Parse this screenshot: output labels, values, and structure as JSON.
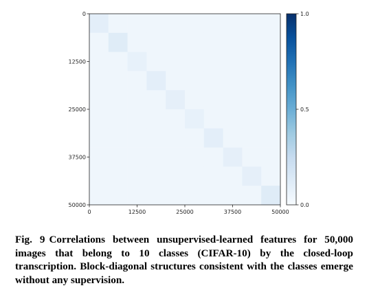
{
  "chart_data": {
    "type": "heatmap",
    "title": "",
    "xlabel": "",
    "ylabel": "",
    "x_ticks": [
      0,
      12500,
      25000,
      37500,
      50000
    ],
    "y_ticks": [
      0,
      12500,
      25000,
      37500,
      50000
    ],
    "x_tick_labels": [
      "0",
      "12500",
      "25000",
      "37500",
      "50000"
    ],
    "y_tick_labels": [
      "0",
      "12500",
      "25000",
      "37500",
      "50000"
    ],
    "xlim": [
      0,
      50000
    ],
    "ylim": [
      50000,
      0
    ],
    "num_blocks": 10,
    "block_size": 5000,
    "colormap": "Blues",
    "colorbar": {
      "range": [
        0.0,
        1.0
      ],
      "ticks": [
        0.0,
        0.5,
        1.0
      ],
      "tick_labels": [
        "0.0",
        "0.5",
        "1.0"
      ]
    },
    "diagonal_block_values": [
      0.1,
      0.12,
      0.08,
      0.1,
      0.09,
      0.08,
      0.1,
      0.09,
      0.09,
      0.12
    ],
    "off_diagonal_value": 0.04,
    "colors": {
      "low": "#f7fbff",
      "mid": "#6baed6",
      "high": "#08306b"
    }
  },
  "caption": {
    "label": "Fig. 9",
    "text": "Correlations between unsupervised-learned features for 50,000 images that belong to 10 classes (CIFAR-10) by the closed-loop transcription. Block-diagonal structures consistent with the classes emerge without any supervision."
  }
}
